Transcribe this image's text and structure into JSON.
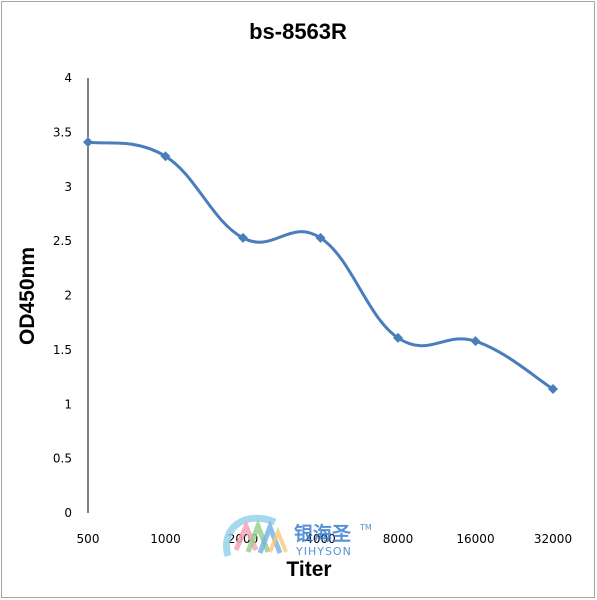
{
  "chart_data": {
    "type": "line",
    "title": "bs-8563R",
    "xlabel": "Titer",
    "ylabel": "OD450nm",
    "categories": [
      "500",
      "1000",
      "2000",
      "4000",
      "8000",
      "16000",
      "32000"
    ],
    "series": [
      {
        "values": [
          3.41,
          3.28,
          2.53,
          2.53,
          1.61,
          1.58,
          1.14
        ]
      }
    ],
    "ylim": [
      0,
      4
    ],
    "yticks": [
      "0",
      "0.5",
      "1",
      "1.5",
      "2",
      "2.5",
      "3",
      "3.5",
      "4"
    ],
    "smooth": true,
    "marker": "diamond",
    "grid": false,
    "legend": "none",
    "color": "#4a7ebb"
  },
  "watermark": {
    "text_cn": "银海圣",
    "tm": "TM",
    "text_en": "YIHYSON",
    "color": "#3c7fd0"
  }
}
